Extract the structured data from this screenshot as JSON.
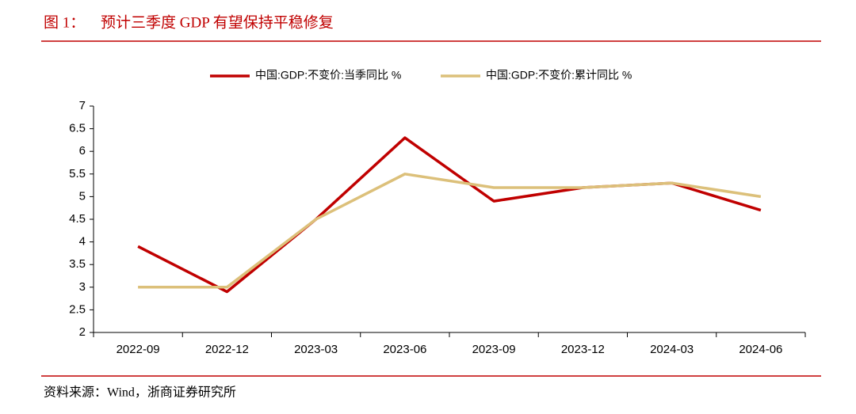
{
  "chart_data": {
    "type": "line",
    "figure_label": "图 1：",
    "title": "预计三季度 GDP 有望保持平稳修复",
    "source": "资料来源：Wind，浙商证券研究所",
    "categories": [
      "2022-09",
      "2022-12",
      "2023-03",
      "2023-06",
      "2023-09",
      "2023-12",
      "2024-03",
      "2024-06"
    ],
    "series": [
      {
        "name": "中国:GDP:不变价:当季同比 %",
        "color": "#c00000",
        "values": [
          3.9,
          2.9,
          4.5,
          6.3,
          4.9,
          5.2,
          5.3,
          4.7
        ]
      },
      {
        "name": "中国:GDP:不变价:累计同比 %",
        "color": "#dcc07a",
        "values": [
          3.0,
          3.0,
          4.5,
          5.5,
          5.2,
          5.2,
          5.3,
          5.0
        ]
      }
    ],
    "ylim": [
      2,
      7
    ],
    "yticks": [
      2,
      2.5,
      3,
      3.5,
      4,
      4.5,
      5,
      5.5,
      6,
      6.5,
      7
    ],
    "grid": false,
    "legend": "top"
  }
}
